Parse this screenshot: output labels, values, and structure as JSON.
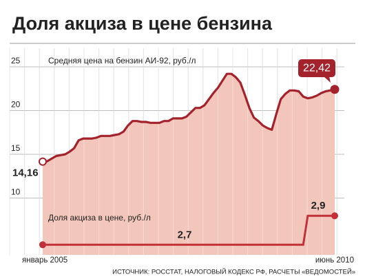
{
  "chart_data": {
    "type": "line",
    "title": "Доля акциза в цене бензина",
    "source": "ИСТОЧНИК: РОССТАТ, НАЛОГОВЫЙ КОДЕКС РФ, РАСЧЕТЫ «ВЕДОМОСТЕЙ»",
    "categories": [
      "январь 2005",
      null,
      null,
      null,
      null,
      null,
      null,
      null,
      null,
      null,
      null,
      null,
      null,
      null,
      null,
      null,
      null,
      null,
      null,
      null,
      null,
      null,
      null,
      null,
      null,
      null,
      null,
      null,
      null,
      null,
      null,
      null,
      null,
      null,
      null,
      null,
      null,
      null,
      null,
      null,
      null,
      null,
      null,
      null,
      null,
      null,
      null,
      null,
      null,
      null,
      null,
      null,
      null,
      null,
      null,
      null,
      null,
      null,
      null,
      null,
      null,
      null,
      null,
      null,
      null,
      "июнь 2010"
    ],
    "series": [
      {
        "name": "Средняя цена на бензин АИ-92, руб./л",
        "color": "#a3222c",
        "area_color": "#f2c6ba",
        "values": [
          14.16,
          14.2,
          14.5,
          14.8,
          14.9,
          15.0,
          15.3,
          15.7,
          16.6,
          16.8,
          16.8,
          16.8,
          16.9,
          17.1,
          17.1,
          17.1,
          17.2,
          17.3,
          17.6,
          18.3,
          18.8,
          18.8,
          18.7,
          18.7,
          18.6,
          18.6,
          18.6,
          18.8,
          18.8,
          19.1,
          19.1,
          19.1,
          19.3,
          19.8,
          20.3,
          20.3,
          20.6,
          21.3,
          22.0,
          22.6,
          23.4,
          24.2,
          24.2,
          23.8,
          23.2,
          21.8,
          20.3,
          19.2,
          18.8,
          18.3,
          18.0,
          17.8,
          19.6,
          21.3,
          21.9,
          22.3,
          22.3,
          22.2,
          21.6,
          21.4,
          21.5,
          21.7,
          22.0,
          22.2,
          22.3,
          22.42
        ],
        "value_labels": [
          "14,16",
          null,
          null,
          null,
          null,
          null,
          null,
          null,
          null,
          null,
          null,
          null,
          null,
          null,
          null,
          null,
          null,
          null,
          null,
          null,
          null,
          null,
          null,
          null,
          null,
          null,
          null,
          null,
          null,
          null,
          null,
          null,
          null,
          null,
          null,
          null,
          null,
          null,
          null,
          null,
          null,
          null,
          null,
          null,
          null,
          null,
          null,
          null,
          null,
          null,
          null,
          null,
          null,
          null,
          null,
          null,
          null,
          null,
          null,
          null,
          null,
          null,
          null,
          null,
          null,
          "22,42"
        ]
      },
      {
        "name": "Доля акциза в цене, руб./л",
        "color": "#c23039",
        "axis": "y2",
        "values": [
          2.7,
          2.7,
          2.7,
          2.7,
          2.7,
          2.7,
          2.7,
          2.7,
          2.7,
          2.7,
          2.7,
          2.7,
          2.7,
          2.7,
          2.7,
          2.7,
          2.7,
          2.7,
          2.7,
          2.7,
          2.7,
          2.7,
          2.7,
          2.7,
          2.7,
          2.7,
          2.7,
          2.7,
          2.7,
          2.7,
          2.7,
          2.7,
          2.7,
          2.7,
          2.7,
          2.7,
          2.7,
          2.7,
          2.7,
          2.7,
          2.7,
          2.7,
          2.7,
          2.7,
          2.7,
          2.7,
          2.7,
          2.7,
          2.7,
          2.7,
          2.7,
          2.7,
          2.7,
          2.7,
          2.7,
          2.7,
          2.7,
          2.7,
          2.7,
          2.9,
          2.9,
          2.9,
          2.9,
          2.9,
          2.9,
          2.9
        ],
        "value_labels": [
          "2,7",
          null,
          null,
          null,
          null,
          null,
          null,
          null,
          null,
          null,
          null,
          null,
          null,
          null,
          null,
          null,
          null,
          null,
          null,
          null,
          null,
          null,
          null,
          null,
          null,
          null,
          null,
          null,
          null,
          null,
          null,
          null,
          null,
          null,
          null,
          null,
          null,
          null,
          null,
          null,
          null,
          null,
          null,
          null,
          null,
          null,
          null,
          null,
          null,
          null,
          null,
          null,
          null,
          null,
          null,
          null,
          null,
          null,
          null,
          null,
          null,
          null,
          null,
          null,
          null,
          "2,9"
        ]
      }
    ],
    "ylim": [
      3.5,
      27
    ],
    "yticks": [
      10,
      15,
      20,
      25
    ],
    "y2lim": [
      2.63,
      4.05
    ],
    "grid": true
  }
}
